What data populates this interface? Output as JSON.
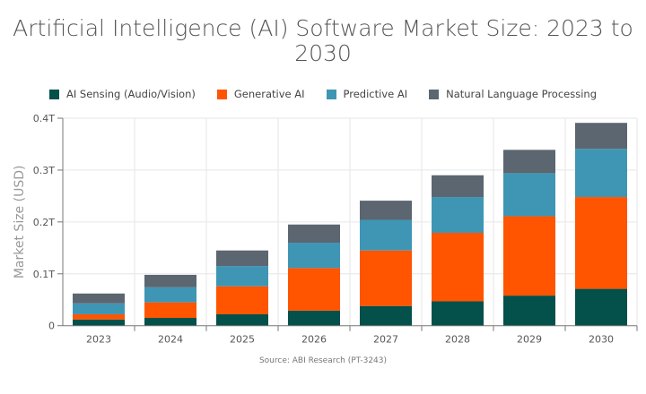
{
  "chart_data": {
    "type": "bar",
    "stacked": true,
    "title": "Artificial Intelligence (AI) Software Market Size: 2023 to 2030",
    "xlabel": "",
    "ylabel": "Market Size (USD)",
    "ylim": [
      0,
      0.4
    ],
    "yticks": [
      "0",
      "0.1T",
      "0.2T",
      "0.3T",
      "0.4T"
    ],
    "grid": true,
    "legend_position": "top",
    "categories": [
      "2023",
      "2024",
      "2025",
      "2026",
      "2027",
      "2028",
      "2029",
      "2030"
    ],
    "series": [
      {
        "name": "AI Sensing (Audio/Vision)",
        "color": "#04504b",
        "values": [
          0.012,
          0.015,
          0.022,
          0.029,
          0.038,
          0.047,
          0.058,
          0.071
        ]
      },
      {
        "name": "Generative AI",
        "color": "#ff5500",
        "values": [
          0.01,
          0.03,
          0.054,
          0.082,
          0.107,
          0.132,
          0.153,
          0.177
        ]
      },
      {
        "name": "Predictive AI",
        "color": "#3f96b4",
        "values": [
          0.021,
          0.029,
          0.039,
          0.049,
          0.059,
          0.069,
          0.083,
          0.093
        ]
      },
      {
        "name": "Natural Language Processing",
        "color": "#5c6670",
        "values": [
          0.019,
          0.024,
          0.03,
          0.035,
          0.037,
          0.042,
          0.045,
          0.05
        ]
      }
    ],
    "source": "Source: ABI Research (PT-3243)"
  }
}
